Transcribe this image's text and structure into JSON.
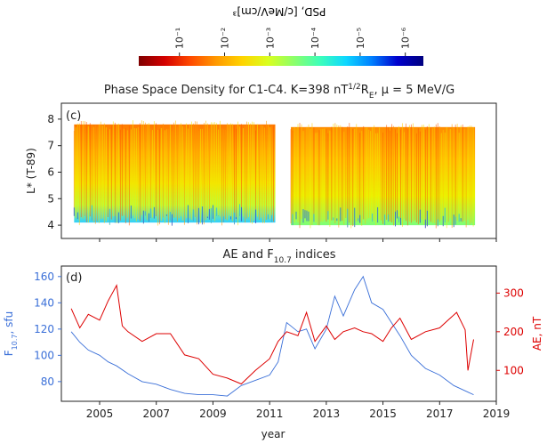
{
  "colorbar": {
    "label": "PSD, [c/MeV/cm]³",
    "ticks": [
      "10⁻¹",
      "10⁻²",
      "10⁻³",
      "10⁻⁴",
      "10⁻⁵",
      "10⁻⁶"
    ],
    "colors": [
      "#7f0000",
      "#d40000",
      "#ff4a00",
      "#ff9a00",
      "#ffd400",
      "#d9ff1f",
      "#8cff6a",
      "#3dffb9",
      "#0ed8ff",
      "#0080ff",
      "#0000cd",
      "#00007f"
    ]
  },
  "chart_data": [
    {
      "type": "heatmap",
      "panel": "(c)",
      "title": "Phase Space Density for C1-C4. K=398 nT¹ᐟ²Rₑ, μ = 5 MeV/G",
      "title_parts": {
        "pre": "Phase Space Density for C1-C4. K=398 nT",
        "sup": "1/2",
        "mid": "R",
        "sub": "E",
        "post": ", μ = 5 MeV/G"
      },
      "ylabel": "L* (T-89)",
      "ylim": [
        3.5,
        8.6
      ],
      "yticks": [
        "4",
        "5",
        "6",
        "7",
        "8"
      ],
      "xlim": [
        2003.65,
        2019.0
      ],
      "color_scale": "log",
      "data_gaps": [
        [
          2011.2,
          2011.75
        ]
      ],
      "coverage": [
        {
          "start": 2004.1,
          "end": 2011.2,
          "lower_L": 4.1,
          "upper_L": 7.8
        },
        {
          "start": 2011.75,
          "end": 2018.25,
          "lower_L": 4.0,
          "upper_L": 7.7
        }
      ]
    },
    {
      "type": "line",
      "panel": "(d)",
      "title": "AE and F10.7 indices",
      "title_parts": {
        "pre": "AE and F",
        "sub": "10.7",
        "post": " indices"
      },
      "xlabel": "year",
      "xticks": [
        "2005",
        "2007",
        "2009",
        "2011",
        "2013",
        "2015",
        "2017",
        "2019"
      ],
      "xlim": [
        2003.65,
        2019.0
      ],
      "grid": false,
      "series": [
        {
          "name": "F10.7",
          "axis": "left",
          "color": "#3a6fd8",
          "label_parts": {
            "pre": "F",
            "sub": "10.7",
            "post": ", sfu"
          },
          "ylim": [
            65,
            168
          ],
          "yticks": [
            "80",
            "100",
            "120",
            "140",
            "160"
          ],
          "x": [
            2004.0,
            2004.3,
            2004.6,
            2005.0,
            2005.3,
            2005.6,
            2006.0,
            2006.5,
            2007.0,
            2007.5,
            2008.0,
            2008.5,
            2009.0,
            2009.5,
            2010.0,
            2010.5,
            2011.0,
            2011.3,
            2011.6,
            2012.0,
            2012.3,
            2012.6,
            2013.0,
            2013.3,
            2013.6,
            2014.0,
            2014.3,
            2014.6,
            2015.0,
            2015.3,
            2015.6,
            2016.0,
            2016.5,
            2017.0,
            2017.5,
            2018.0,
            2018.2
          ],
          "values": [
            118,
            110,
            104,
            100,
            95,
            92,
            86,
            80,
            78,
            74,
            71,
            70,
            70,
            69,
            77,
            81,
            85,
            95,
            125,
            118,
            120,
            105,
            120,
            145,
            130,
            150,
            160,
            140,
            135,
            125,
            115,
            100,
            90,
            85,
            77,
            72,
            70
          ]
        },
        {
          "name": "AE",
          "axis": "right",
          "color": "#dd0000",
          "label": "AE, nT",
          "ylim": [
            20,
            370
          ],
          "yticks": [
            "100",
            "200",
            "300"
          ],
          "x": [
            2004.0,
            2004.3,
            2004.6,
            2005.0,
            2005.3,
            2005.6,
            2005.8,
            2006.0,
            2006.5,
            2007.0,
            2007.5,
            2008.0,
            2008.5,
            2009.0,
            2009.5,
            2010.0,
            2010.5,
            2011.0,
            2011.3,
            2011.6,
            2012.0,
            2012.3,
            2012.6,
            2013.0,
            2013.3,
            2013.6,
            2014.0,
            2014.3,
            2014.6,
            2015.0,
            2015.3,
            2015.6,
            2016.0,
            2016.5,
            2017.0,
            2017.3,
            2017.6,
            2017.9,
            2018.0,
            2018.2
          ],
          "values": [
            260,
            210,
            245,
            230,
            280,
            320,
            215,
            200,
            175,
            195,
            195,
            140,
            130,
            90,
            80,
            65,
            100,
            130,
            175,
            200,
            190,
            250,
            175,
            215,
            180,
            200,
            210,
            200,
            195,
            175,
            210,
            235,
            180,
            200,
            210,
            230,
            250,
            205,
            100,
            180
          ]
        }
      ]
    }
  ]
}
